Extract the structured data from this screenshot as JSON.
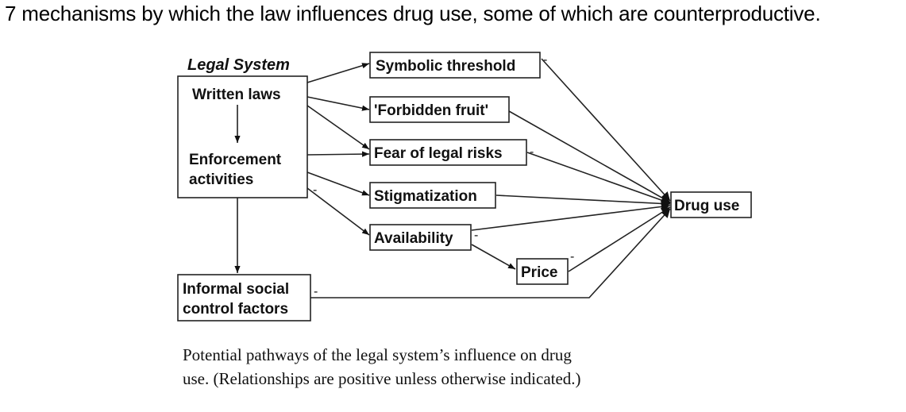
{
  "title": "7 mechanisms by which the law influences drug use, some of which are counterproductive.",
  "diagram": {
    "legal_system_label": "Legal System",
    "written_laws": "Written laws",
    "enforcement_line1": "Enforcement",
    "enforcement_line2": "activities",
    "informal_line1": "Informal social",
    "informal_line2": "control factors",
    "symbolic_threshold": "Symbolic threshold",
    "forbidden_fruit": "'Forbidden fruit'",
    "fear_of_legal_risks": "Fear of legal risks",
    "stigmatization": "Stigmatization",
    "availability": "Availability",
    "price": "Price",
    "drug_use": "Drug use",
    "negative_sign": "-"
  },
  "caption_line1": "Potential pathways of the legal system’s influence on drug",
  "caption_line2": "use. (Relationships are positive unless otherwise indicated.)"
}
